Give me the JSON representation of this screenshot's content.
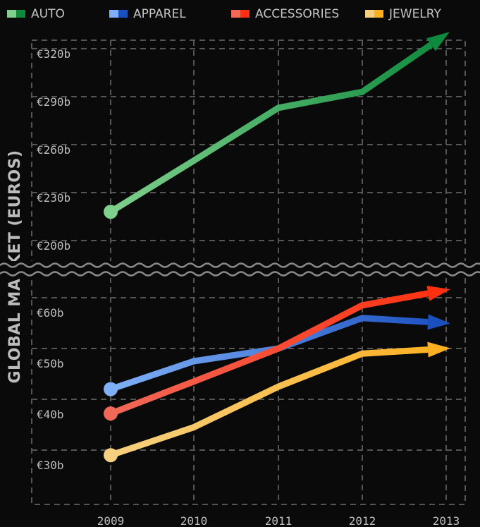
{
  "chart_data": {
    "type": "line",
    "ylabel": "GLOBAL MARKET (EUROS)",
    "xlabel": "",
    "categories": [
      "2009",
      "2010",
      "2011",
      "2012",
      "2013"
    ],
    "y_axis_break": true,
    "upper_ylim": [
      200,
      320
    ],
    "lower_ylim": [
      25,
      65
    ],
    "y_ticks_upper": [
      {
        "value": 320,
        "label": "€320b"
      },
      {
        "value": 290,
        "label": "€290b"
      },
      {
        "value": 260,
        "label": "€260b"
      },
      {
        "value": 230,
        "label": "€230b"
      },
      {
        "value": 200,
        "label": "€200b"
      }
    ],
    "y_ticks_lower": [
      {
        "value": 60,
        "label": "€60b"
      },
      {
        "value": 50,
        "label": "€50b"
      },
      {
        "value": 40,
        "label": "€40b"
      },
      {
        "value": 30,
        "label": "€30b"
      }
    ],
    "grid": true,
    "legend_position": "top",
    "series": [
      {
        "name": "AUTO",
        "values": [
          218,
          250,
          283,
          293,
          329
        ],
        "color": "#0e8a3c",
        "start_color": "#7fd08c",
        "axis": "upper"
      },
      {
        "name": "APPAREL",
        "values": [
          42,
          47.5,
          50,
          56,
          55
        ],
        "color": "#1a4fc0",
        "start_color": "#7fb0f5",
        "axis": "lower"
      },
      {
        "name": "ACCESSORIES",
        "values": [
          37.2,
          43.5,
          50,
          58.5,
          61.5
        ],
        "color": "#ff3010",
        "start_color": "#f06858",
        "axis": "lower"
      },
      {
        "name": "JEWELRY",
        "values": [
          29,
          34.5,
          42.5,
          49,
          50
        ],
        "color": "#ffb020",
        "start_color": "#f5d080",
        "axis": "lower"
      }
    ]
  }
}
